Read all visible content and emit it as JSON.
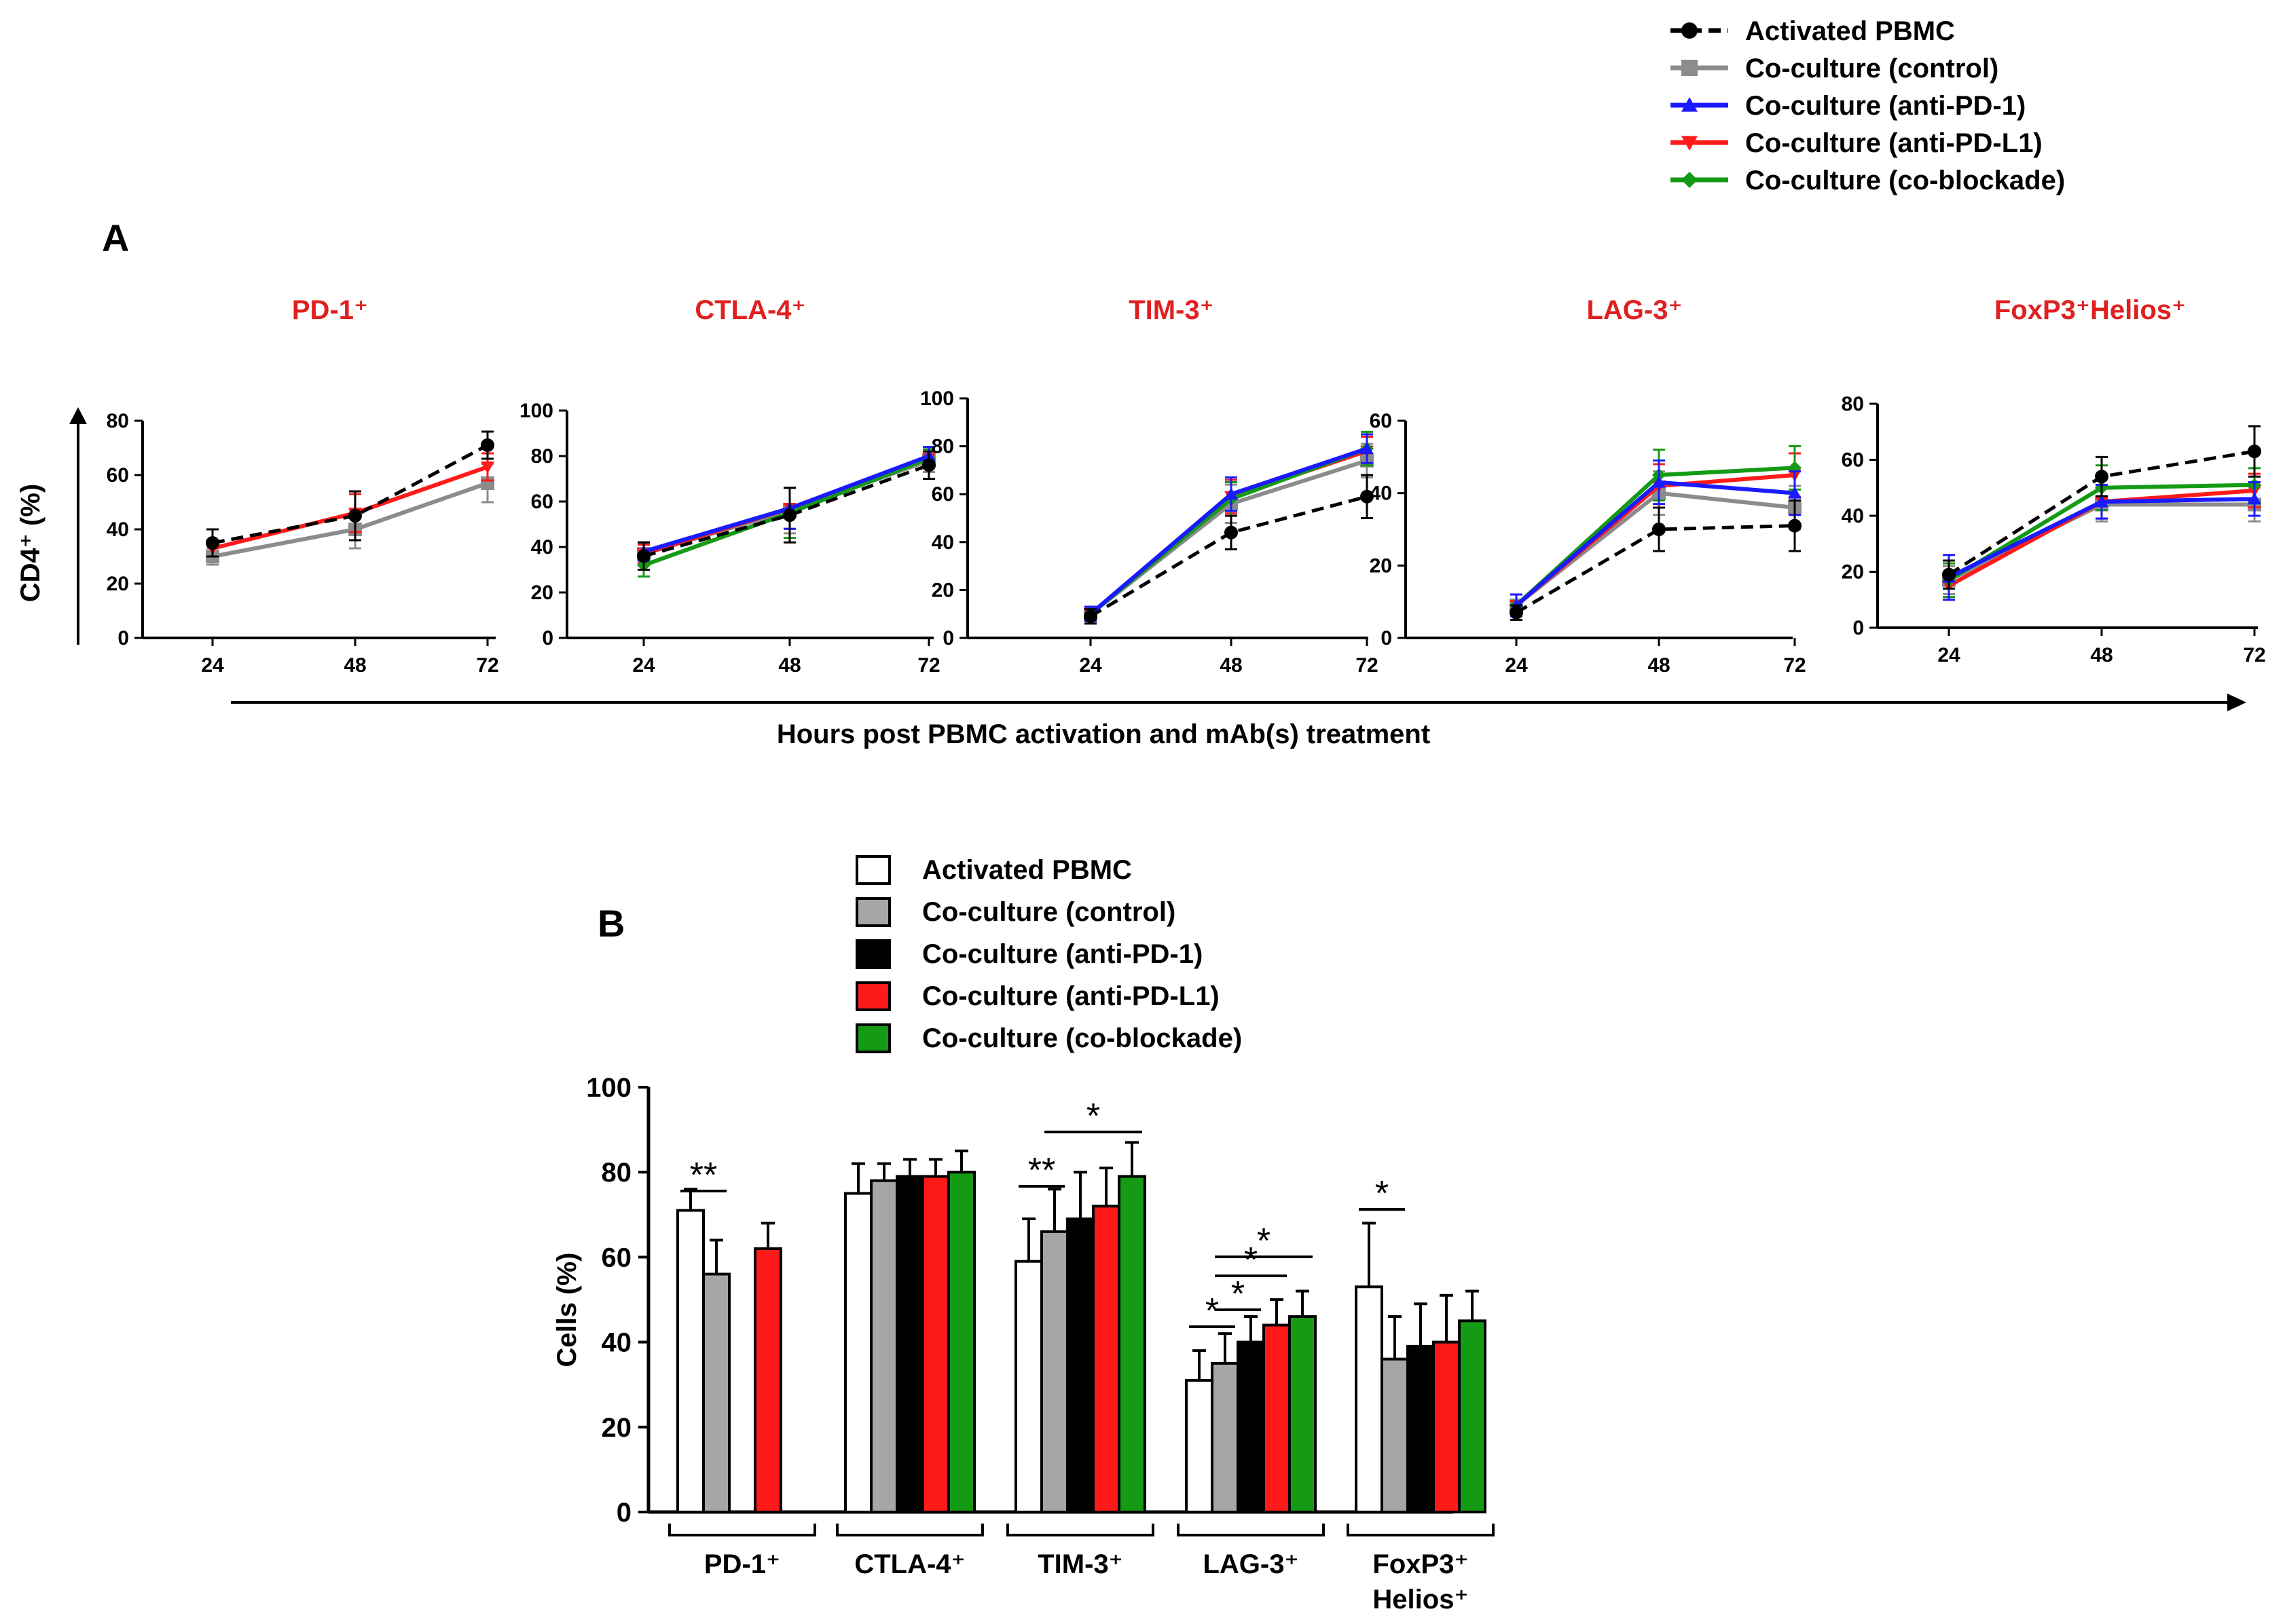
{
  "panel_a": {
    "letter": "A",
    "ylabel": "CD4⁺ (%)",
    "xlabel": "Hours post PBMC activation and mAb(s) treatment",
    "legend": [
      {
        "label": "Activated PBMC",
        "color": "#000000",
        "marker": "circle",
        "dash": true
      },
      {
        "label": "Co-culture (control)",
        "color": "#8c8c8c",
        "marker": "square",
        "dash": false
      },
      {
        "label": "Co-culture (anti-PD-1)",
        "color": "#1a1aff",
        "marker": "triangle-up",
        "dash": false
      },
      {
        "label": "Co-culture (anti-PD-L1)",
        "color": "#ff1a1a",
        "marker": "triangle-down",
        "dash": false
      },
      {
        "label": "Co-culture (co-blockade)",
        "color": "#159a15",
        "marker": "diamond",
        "dash": false
      }
    ]
  },
  "panel_b": {
    "letter": "B",
    "ylabel": "Cells (%)",
    "groups": [
      {
        "line1": "PD-1⁺",
        "line2": ""
      },
      {
        "line1": "CTLA-4⁺",
        "line2": ""
      },
      {
        "line1": "TIM-3⁺",
        "line2": ""
      },
      {
        "line1": "LAG-3⁺",
        "line2": ""
      },
      {
        "line1": "FoxP3⁺",
        "line2": "Helios⁺"
      }
    ],
    "legend": [
      {
        "label": "Activated PBMC",
        "color": "#ffffff"
      },
      {
        "label": "Co-culture (control)",
        "color": "#a6a6a6"
      },
      {
        "label": "Co-culture (anti-PD-1)",
        "color": "#000000"
      },
      {
        "label": "Co-culture (anti-PD-L1)",
        "color": "#ff1a1a"
      },
      {
        "label": "Co-culture (co-blockade)",
        "color": "#159a15"
      }
    ]
  },
  "chart_data": [
    {
      "type": "line",
      "title": "PD-1⁺",
      "x": [
        24,
        48,
        72
      ],
      "yticks": [
        0,
        20,
        40,
        60,
        80
      ],
      "ylim": [
        0,
        80
      ],
      "series": [
        {
          "name": "Activated PBMC",
          "values": [
            35,
            45,
            71
          ],
          "err": [
            5,
            9,
            5
          ]
        },
        {
          "name": "Co-culture (control)",
          "values": [
            30,
            40,
            57
          ],
          "err": [
            3,
            7,
            7
          ]
        },
        {
          "name": "Co-culture (anti-PD-L1)",
          "values": [
            33,
            46,
            63
          ],
          "err": [
            3,
            7,
            5
          ]
        }
      ]
    },
    {
      "type": "line",
      "title": "CTLA-4⁺",
      "x": [
        24,
        48,
        72
      ],
      "yticks": [
        0,
        20,
        40,
        60,
        80,
        100
      ],
      "ylim": [
        0,
        100
      ],
      "series": [
        {
          "name": "Activated PBMC",
          "values": [
            36,
            54,
            76
          ],
          "err": [
            6,
            12,
            6
          ]
        },
        {
          "name": "Co-culture (control)",
          "values": [
            37,
            56,
            78
          ],
          "err": [
            5,
            10,
            5
          ]
        },
        {
          "name": "Co-culture (anti-PD-1)",
          "values": [
            38,
            57,
            80
          ],
          "err": [
            4,
            9,
            4
          ]
        },
        {
          "name": "Co-culture (anti-PD-L1)",
          "values": [
            37,
            57,
            79
          ],
          "err": [
            4,
            9,
            4
          ]
        },
        {
          "name": "Co-culture (co-blockade)",
          "values": [
            32,
            55,
            79
          ],
          "err": [
            5,
            11,
            4
          ]
        }
      ]
    },
    {
      "type": "line",
      "title": "TIM-3⁺",
      "x": [
        24,
        48,
        72
      ],
      "yticks": [
        0,
        20,
        40,
        60,
        80,
        100
      ],
      "ylim": [
        0,
        100
      ],
      "series": [
        {
          "name": "Activated PBMC",
          "values": [
            9,
            44,
            59
          ],
          "err": [
            3,
            7,
            9
          ]
        },
        {
          "name": "Co-culture (control)",
          "values": [
            10,
            56,
            74
          ],
          "err": [
            3,
            8,
            7
          ]
        },
        {
          "name": "Co-culture (anti-PD-1)",
          "values": [
            10,
            60,
            79
          ],
          "err": [
            3,
            7,
            6
          ]
        },
        {
          "name": "Co-culture (anti-PD-L1)",
          "values": [
            10,
            59,
            78
          ],
          "err": [
            3,
            7,
            6
          ]
        },
        {
          "name": "Co-culture (co-blockade)",
          "values": [
            10,
            58,
            79
          ],
          "err": [
            3,
            7,
            7
          ]
        }
      ]
    },
    {
      "type": "line",
      "title": "LAG-3⁺",
      "x": [
        24,
        48,
        72
      ],
      "yticks": [
        0,
        20,
        40,
        60
      ],
      "ylim": [
        0,
        60
      ],
      "series": [
        {
          "name": "Activated PBMC",
          "values": [
            7,
            30,
            31
          ],
          "err": [
            2,
            6,
            7
          ]
        },
        {
          "name": "Co-culture (control)",
          "values": [
            9,
            40,
            36
          ],
          "err": [
            3,
            6,
            6
          ]
        },
        {
          "name": "Co-culture (anti-PD-1)",
          "values": [
            9,
            43,
            40
          ],
          "err": [
            3,
            6,
            6
          ]
        },
        {
          "name": "Co-culture (anti-PD-L1)",
          "values": [
            9,
            42,
            45
          ],
          "err": [
            3,
            6,
            6
          ]
        },
        {
          "name": "Co-culture (co-blockade)",
          "values": [
            9,
            45,
            47
          ],
          "err": [
            3,
            7,
            6
          ]
        }
      ]
    },
    {
      "type": "line",
      "title": "FoxP3⁺Helios⁺",
      "x": [
        24,
        48,
        72
      ],
      "yticks": [
        0,
        20,
        40,
        60,
        80
      ],
      "ylim": [
        0,
        80
      ],
      "series": [
        {
          "name": "Activated PBMC",
          "values": [
            19,
            54,
            63
          ],
          "err": [
            5,
            7,
            9
          ]
        },
        {
          "name": "Co-culture (control)",
          "values": [
            17,
            44,
            44
          ],
          "err": [
            5,
            6,
            6
          ]
        },
        {
          "name": "Co-culture (anti-PD-1)",
          "values": [
            18,
            45,
            46
          ],
          "err": [
            8,
            6,
            6
          ]
        },
        {
          "name": "Co-culture (anti-PD-L1)",
          "values": [
            15,
            45,
            49
          ],
          "err": [
            5,
            6,
            6
          ]
        },
        {
          "name": "Co-culture (co-blockade)",
          "values": [
            17,
            50,
            51
          ],
          "err": [
            6,
            8,
            6
          ]
        }
      ]
    },
    {
      "type": "bar",
      "ylabel": "Cells (%)",
      "ylim": [
        0,
        100
      ],
      "yticks": [
        0,
        20,
        40,
        60,
        80,
        100
      ],
      "categories": [
        "PD-1⁺",
        "CTLA-4⁺",
        "TIM-3⁺",
        "LAG-3⁺",
        "FoxP3⁺ Helios⁺"
      ],
      "series": [
        {
          "name": "Activated PBMC",
          "values": [
            71,
            75,
            59,
            31,
            53
          ],
          "err": [
            5,
            7,
            10,
            7,
            15
          ]
        },
        {
          "name": "Co-culture (control)",
          "values": [
            56,
            78,
            66,
            35,
            36
          ],
          "err": [
            8,
            4,
            10,
            7,
            10
          ]
        },
        {
          "name": "Co-culture (anti-PD-1)",
          "values": [
            null,
            79,
            69,
            40,
            39
          ],
          "err": [
            null,
            4,
            11,
            6,
            10
          ]
        },
        {
          "name": "Co-culture (anti-PD-L1)",
          "values": [
            62,
            79,
            72,
            44,
            40
          ],
          "err": [
            6,
            4,
            9,
            6,
            11
          ]
        },
        {
          "name": "Co-culture (co-blockade)",
          "values": [
            null,
            80,
            79,
            46,
            45
          ],
          "err": [
            null,
            5,
            8,
            6,
            7
          ]
        }
      ],
      "annotations": [
        {
          "group": 0,
          "from": 0,
          "to": 1,
          "label": "**"
        },
        {
          "group": 2,
          "from": 0,
          "to": 1,
          "label": "**"
        },
        {
          "group": 2,
          "from": 1,
          "to": 4,
          "label": "*"
        },
        {
          "group": 3,
          "from": 0,
          "to": 1,
          "label": "*"
        },
        {
          "group": 3,
          "from": 1,
          "to": 2,
          "label": "*"
        },
        {
          "group": 3,
          "from": 1,
          "to": 3,
          "label": "*"
        },
        {
          "group": 3,
          "from": 1,
          "to": 4,
          "label": "*"
        },
        {
          "group": 4,
          "from": 0,
          "to": 1,
          "label": "*"
        }
      ]
    }
  ]
}
